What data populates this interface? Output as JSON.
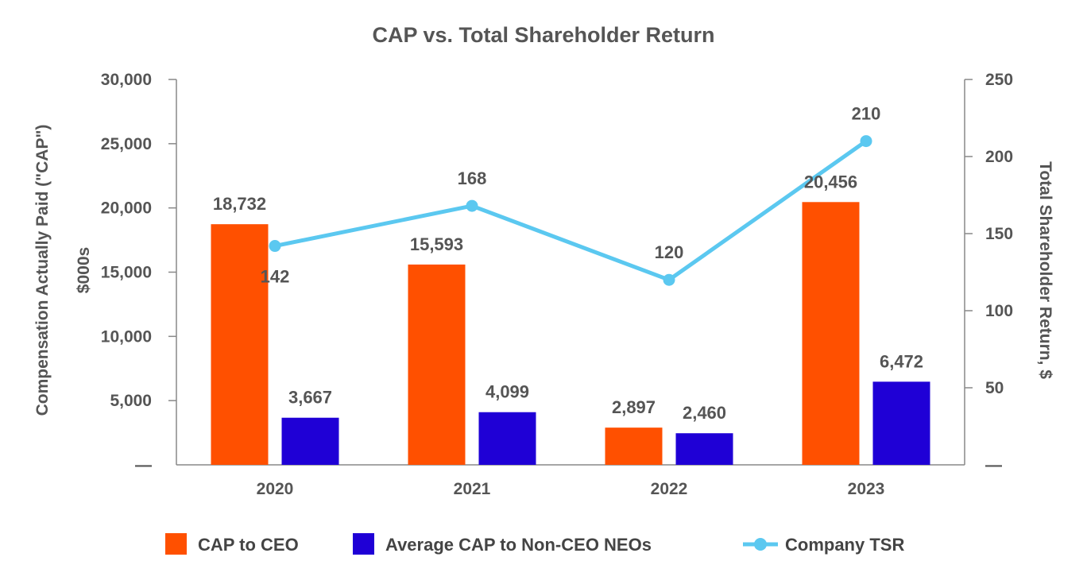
{
  "chart_data": {
    "type": "bar",
    "title": "CAP vs. Total Shareholder Return",
    "categories": [
      "2020",
      "2021",
      "2022",
      "2023"
    ],
    "ylabel_left_line1": "Compensation Actually Paid (\"CAP\")",
    "ylabel_left_line2": "$000s",
    "ylabel_right": "Total Shareholder Return, $",
    "y_left": {
      "range": [
        0,
        30000
      ],
      "ticks": [
        "—",
        "5,000",
        "10,000",
        "15,000",
        "20,000",
        "25,000",
        "30,000"
      ],
      "tick_values": [
        0,
        5000,
        10000,
        15000,
        20000,
        25000,
        30000
      ]
    },
    "y_right": {
      "range": [
        0,
        250
      ],
      "ticks": [
        "—",
        "50",
        "100",
        "150",
        "200",
        "250"
      ],
      "tick_values": [
        0,
        50,
        100,
        150,
        200,
        250
      ]
    },
    "grid": false,
    "legend_position": "bottom",
    "series": [
      {
        "name": "CAP to CEO",
        "type": "bar",
        "axis": "left",
        "color": "#FF5000",
        "values": [
          18732,
          15593,
          2897,
          20456
        ],
        "labels": [
          "18,732",
          "15,593",
          "2,897",
          "20,456"
        ]
      },
      {
        "name": "Average CAP to Non-CEO NEOs",
        "type": "bar",
        "axis": "left",
        "color": "#1F00D6",
        "values": [
          3667,
          4099,
          2460,
          6472
        ],
        "labels": [
          "3,667",
          "4,099",
          "2,460",
          "6,472"
        ]
      },
      {
        "name": "Company TSR",
        "type": "line",
        "axis": "right",
        "color": "#5BC8F0",
        "values": [
          142,
          168,
          120,
          210
        ],
        "labels": [
          "142",
          "168",
          "120",
          "210"
        ]
      }
    ]
  }
}
